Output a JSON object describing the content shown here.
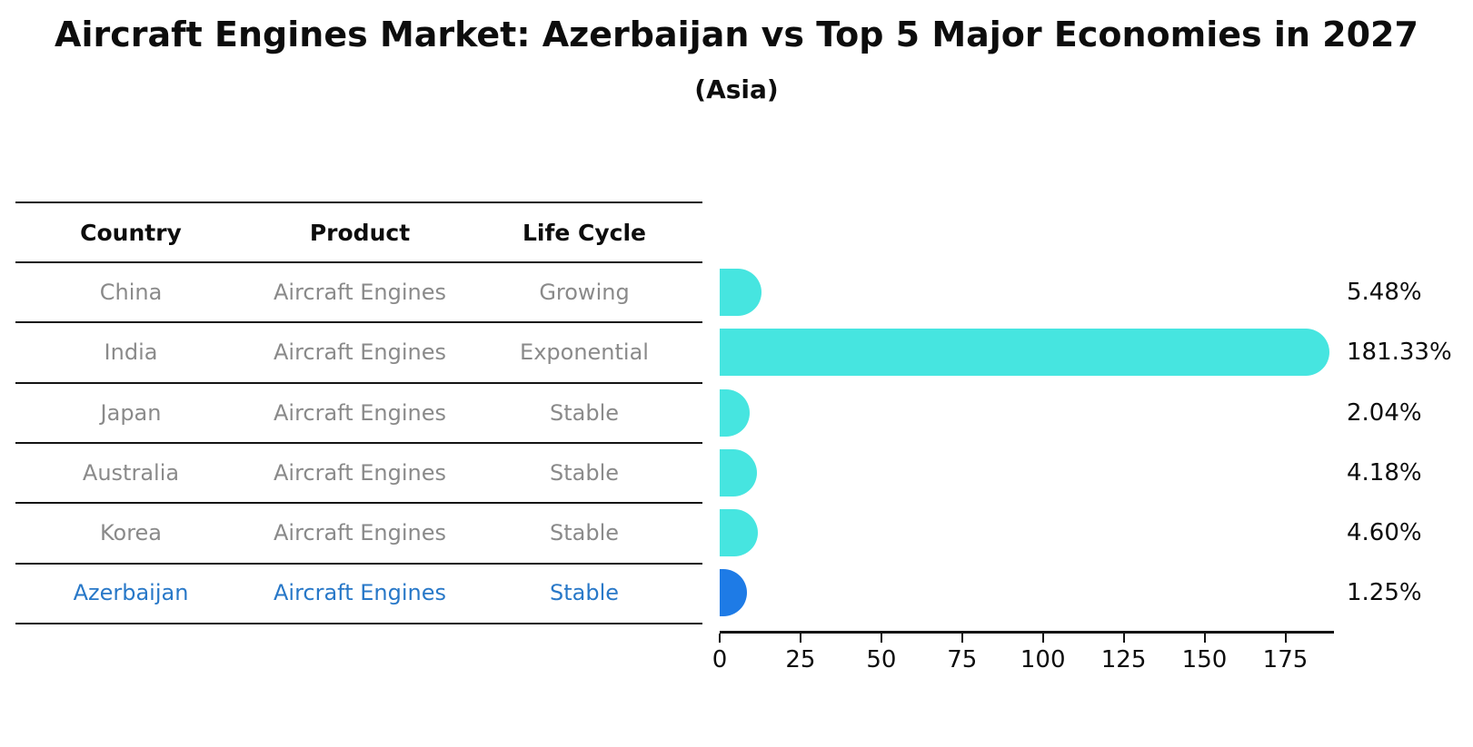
{
  "title": "Aircraft Engines Market: Azerbaijan vs Top 5 Major Economies in 2027",
  "subtitle": "(Asia)",
  "table": {
    "headers": [
      "Country",
      "Product",
      "Life Cycle"
    ],
    "rows": [
      {
        "country": "China",
        "product": "Aircraft Engines",
        "life_cycle": "Growing",
        "highlight": false
      },
      {
        "country": "India",
        "product": "Aircraft Engines",
        "life_cycle": "Exponential",
        "highlight": false
      },
      {
        "country": "Japan",
        "product": "Aircraft Engines",
        "life_cycle": "Stable",
        "highlight": false
      },
      {
        "country": "Australia",
        "product": "Aircraft Engines",
        "life_cycle": "Stable",
        "highlight": false
      },
      {
        "country": "Korea",
        "product": "Aircraft Engines",
        "life_cycle": "Stable",
        "highlight": false
      },
      {
        "country": "Azerbaijan",
        "product": "Aircraft Engines",
        "life_cycle": "Stable",
        "highlight": true
      }
    ]
  },
  "chart_data": {
    "type": "bar",
    "orientation": "horizontal",
    "categories": [
      "China",
      "India",
      "Japan",
      "Australia",
      "Korea",
      "Azerbaijan"
    ],
    "values": [
      5.48,
      181.33,
      2.04,
      4.18,
      4.6,
      1.25
    ],
    "value_labels": [
      "5.48%",
      "181.33%",
      "2.04%",
      "4.18%",
      "4.60%",
      "1.25%"
    ],
    "x_ticks": [
      0,
      25,
      50,
      75,
      100,
      125,
      150,
      175
    ],
    "xlim": [
      0,
      190
    ],
    "grid": false,
    "legend": "none",
    "highlight_index": 5,
    "colors": {
      "bar": "#46E5E0",
      "highlight_bar": "#1E7BE6",
      "highlight_text": "#2878C8",
      "row_text": "#8a8a8a",
      "axis": "#141414"
    }
  }
}
